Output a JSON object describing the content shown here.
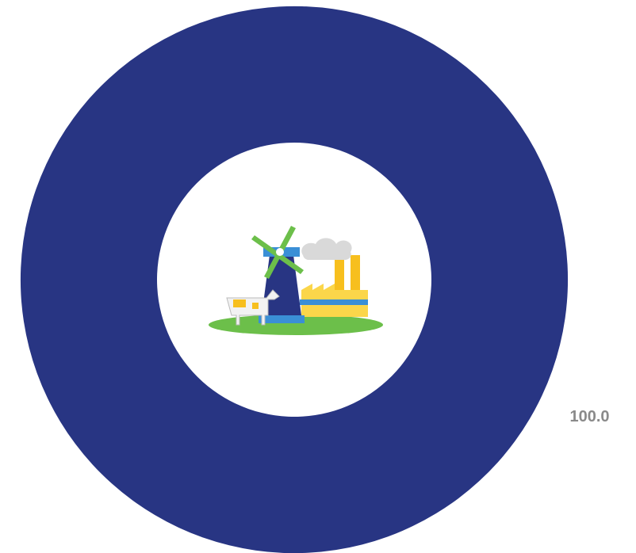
{
  "chart_data": {
    "type": "donut",
    "values": [
      100
    ],
    "value_labels": [
      "100.0"
    ],
    "colors": [
      "#283583"
    ]
  }
}
